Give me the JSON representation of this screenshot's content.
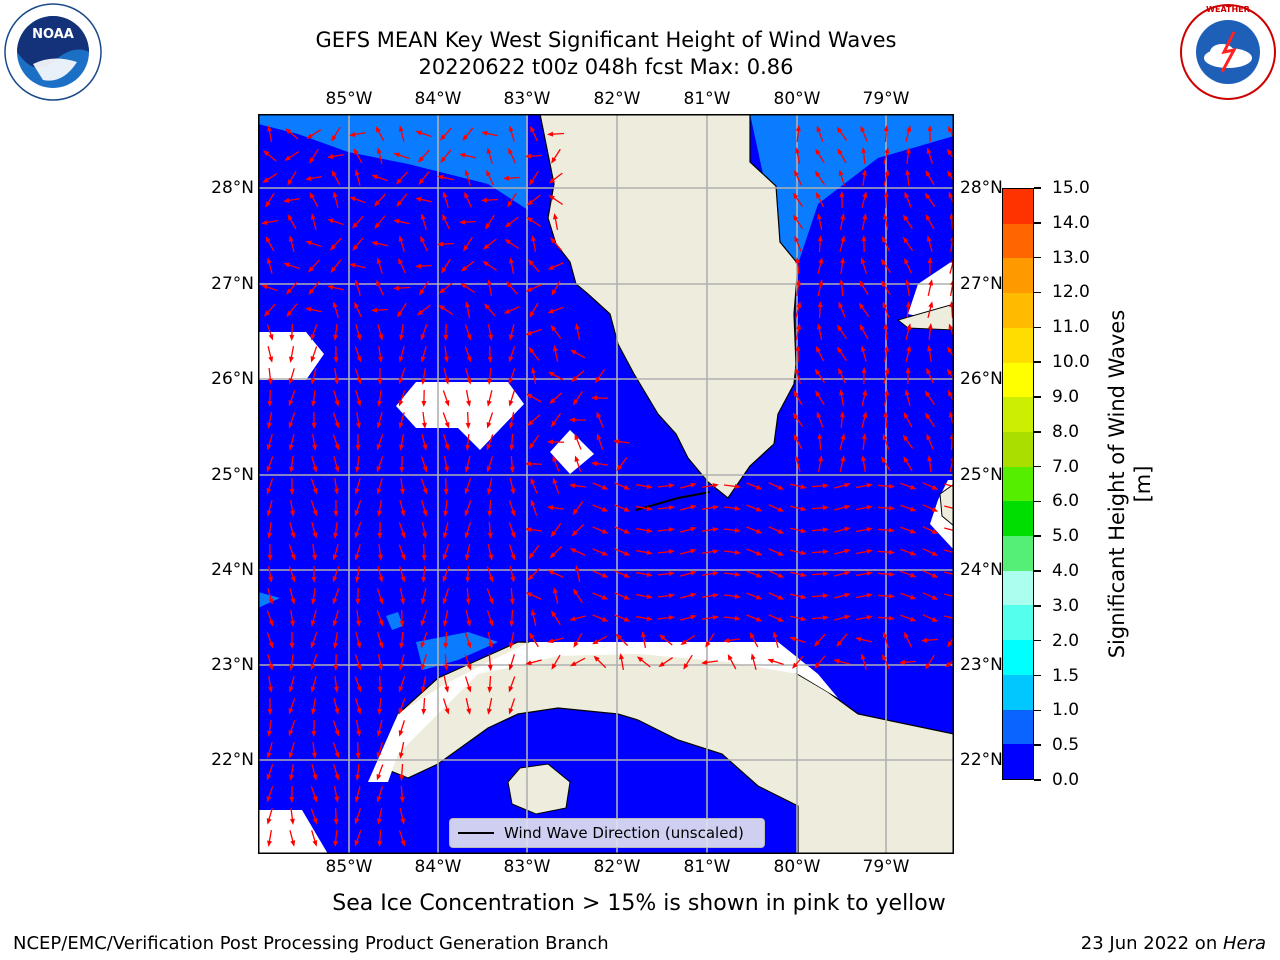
{
  "title_line1": "GEFS MEAN Key West Significant Height of Wind Waves",
  "title_line2": "20220622 t00z 048h fcst   Max: 0.86",
  "lon_labels": [
    "85°W",
    "84°W",
    "83°W",
    "82°W",
    "81°W",
    "80°W",
    "79°W"
  ],
  "lat_labels": [
    "28°N",
    "27°N",
    "26°N",
    "25°N",
    "24°N",
    "23°N",
    "22°N"
  ],
  "colorbar": {
    "title": "Significant Height of Wind Waves [m]",
    "ticks": [
      "0.0",
      "0.5",
      "1.0",
      "1.5",
      "2.0",
      "3.0",
      "4.0",
      "5.0",
      "6.0",
      "7.0",
      "8.0",
      "9.0",
      "10.0",
      "11.0",
      "12.0",
      "13.0",
      "14.0",
      "15.0"
    ],
    "colors": [
      "#0000ff",
      "#0a64ff",
      "#00c8ff",
      "#00ffff",
      "#55ffee",
      "#aaffee",
      "#55ee77",
      "#00dd00",
      "#55ee00",
      "#aadd00",
      "#ccee00",
      "#ffff00",
      "#ffdd00",
      "#ffbb00",
      "#ff9900",
      "#ff6600",
      "#ff3300"
    ]
  },
  "legend_label": "Wind Wave Direction (unscaled)",
  "footnote": "Sea Ice Concentration > 15% is shown in pink to yellow",
  "credit": "NCEP/EMC/Verification Post Processing Product Generation Branch",
  "date_prefix": "23 Jun 2022 on ",
  "date_machine": "Hera",
  "logos": {
    "left": "NOAA",
    "right": "NATIONAL WEATHER SERVICE"
  },
  "colors": {
    "ocean": "#0000ff",
    "ocean_light": "#0a7cff",
    "land": "#eeecdc",
    "arrow": "#ff0000",
    "grid": "#b0b0b0"
  },
  "wind_direction": "arrows point mostly northward in the north/east and southward in the south-west"
}
